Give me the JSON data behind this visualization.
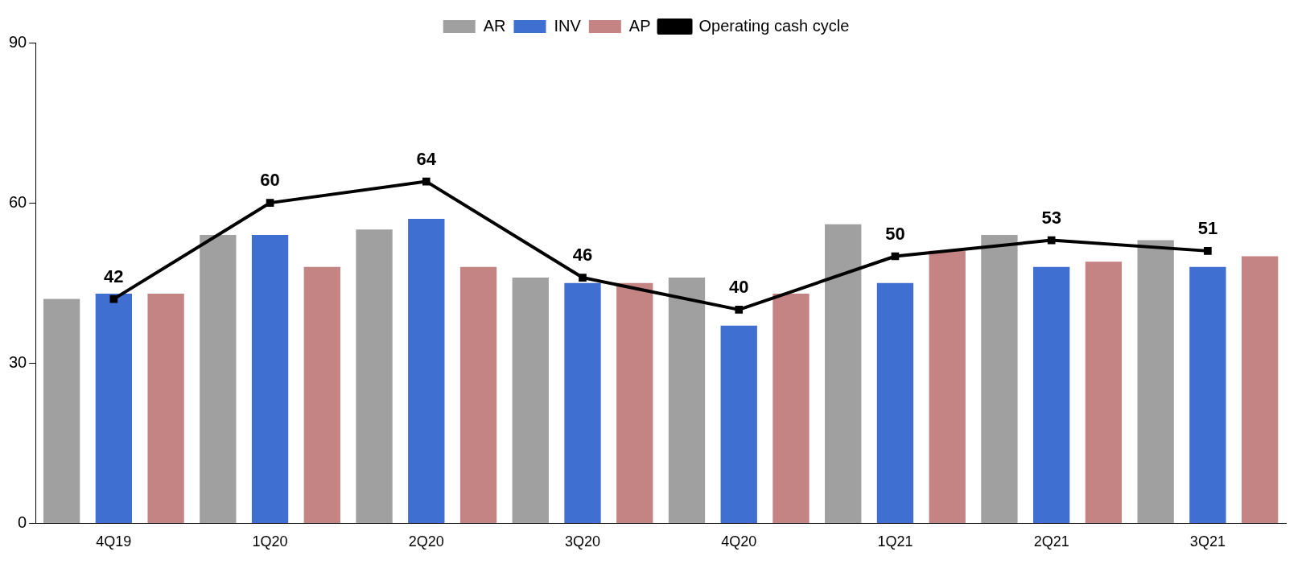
{
  "chart_data": {
    "type": "bar",
    "categories": [
      "4Q19",
      "1Q20",
      "2Q20",
      "3Q20",
      "4Q20",
      "1Q21",
      "2Q21",
      "3Q21"
    ],
    "series": [
      {
        "name": "AR",
        "color": "#a0a0a0",
        "values": [
          42,
          54,
          55,
          46,
          46,
          56,
          54,
          53
        ]
      },
      {
        "name": "INV",
        "color": "#3f6fd0",
        "values": [
          43,
          54,
          57,
          45,
          37,
          45,
          48,
          48
        ]
      },
      {
        "name": "AP",
        "color": "#c48484",
        "values": [
          43,
          48,
          48,
          45,
          43,
          51,
          49,
          50
        ]
      },
      {
        "name": "Operating cash cycle",
        "type": "line",
        "color": "#000000",
        "values": [
          42,
          60,
          64,
          46,
          40,
          50,
          53,
          51
        ],
        "value_labels": [
          "42",
          "60",
          "64",
          "46",
          "40",
          "50",
          "53",
          "51"
        ],
        "marker": "square",
        "line_style": "solid"
      }
    ],
    "ylim": [
      0,
      90
    ],
    "yticks": [
      0,
      30,
      60,
      90
    ],
    "grid": false,
    "legend": "top"
  }
}
